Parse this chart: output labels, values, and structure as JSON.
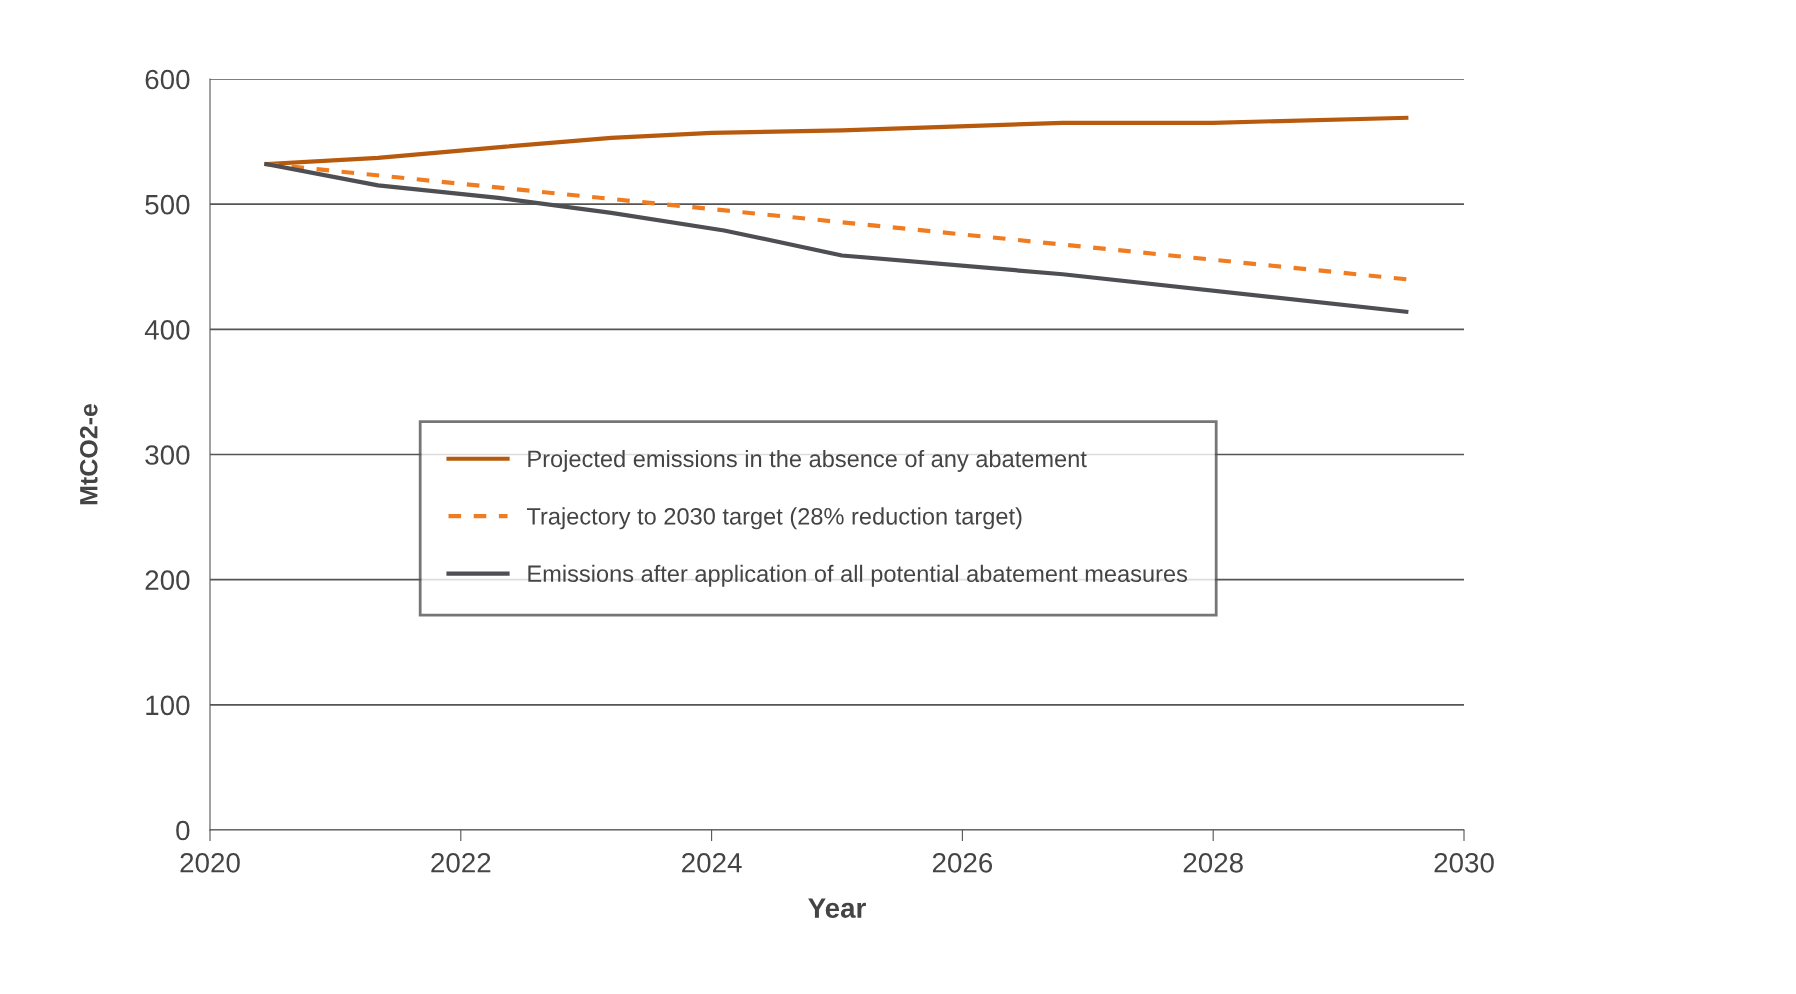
{
  "chart_data": {
    "type": "line",
    "xlabel": "Year",
    "ylabel": "MtCO2-e",
    "xlim": [
      2020,
      2030
    ],
    "xticks": [
      2020,
      2022,
      2024,
      2026,
      2028,
      2030
    ],
    "ylim": [
      0,
      600
    ],
    "yticks": [
      0,
      100,
      200,
      300,
      400,
      500,
      600
    ],
    "grid": "y",
    "legend": "center",
    "marker": "none",
    "series": [
      {
        "name": "Projected emissions in the absence of any abatement",
        "color": "#b85a0e",
        "line_style": "solid",
        "x": [
          2020.45,
          2021.34,
          2022.36,
          2023.2,
          2024,
          2025.04,
          2026.8,
          2028,
          2029.54
        ],
        "values": [
          532,
          537,
          546,
          553,
          557,
          559,
          565,
          565,
          569
        ]
      },
      {
        "name": "Trajectory to 2030 target (28% reduction target)",
        "color": "#f07c22",
        "line_style": "dashed",
        "x": [
          2020.45,
          2029.54
        ],
        "values": [
          532,
          440
        ]
      },
      {
        "name": "Emissions after application of all potential abatement measures",
        "color": "#4d4f53",
        "line_style": "solid",
        "x": [
          2020.45,
          2021.34,
          2022.3,
          2023.2,
          2024.1,
          2025.04,
          2026.8,
          2029.54
        ],
        "values": [
          532,
          515,
          505,
          493,
          479,
          459,
          444,
          414
        ]
      }
    ]
  }
}
